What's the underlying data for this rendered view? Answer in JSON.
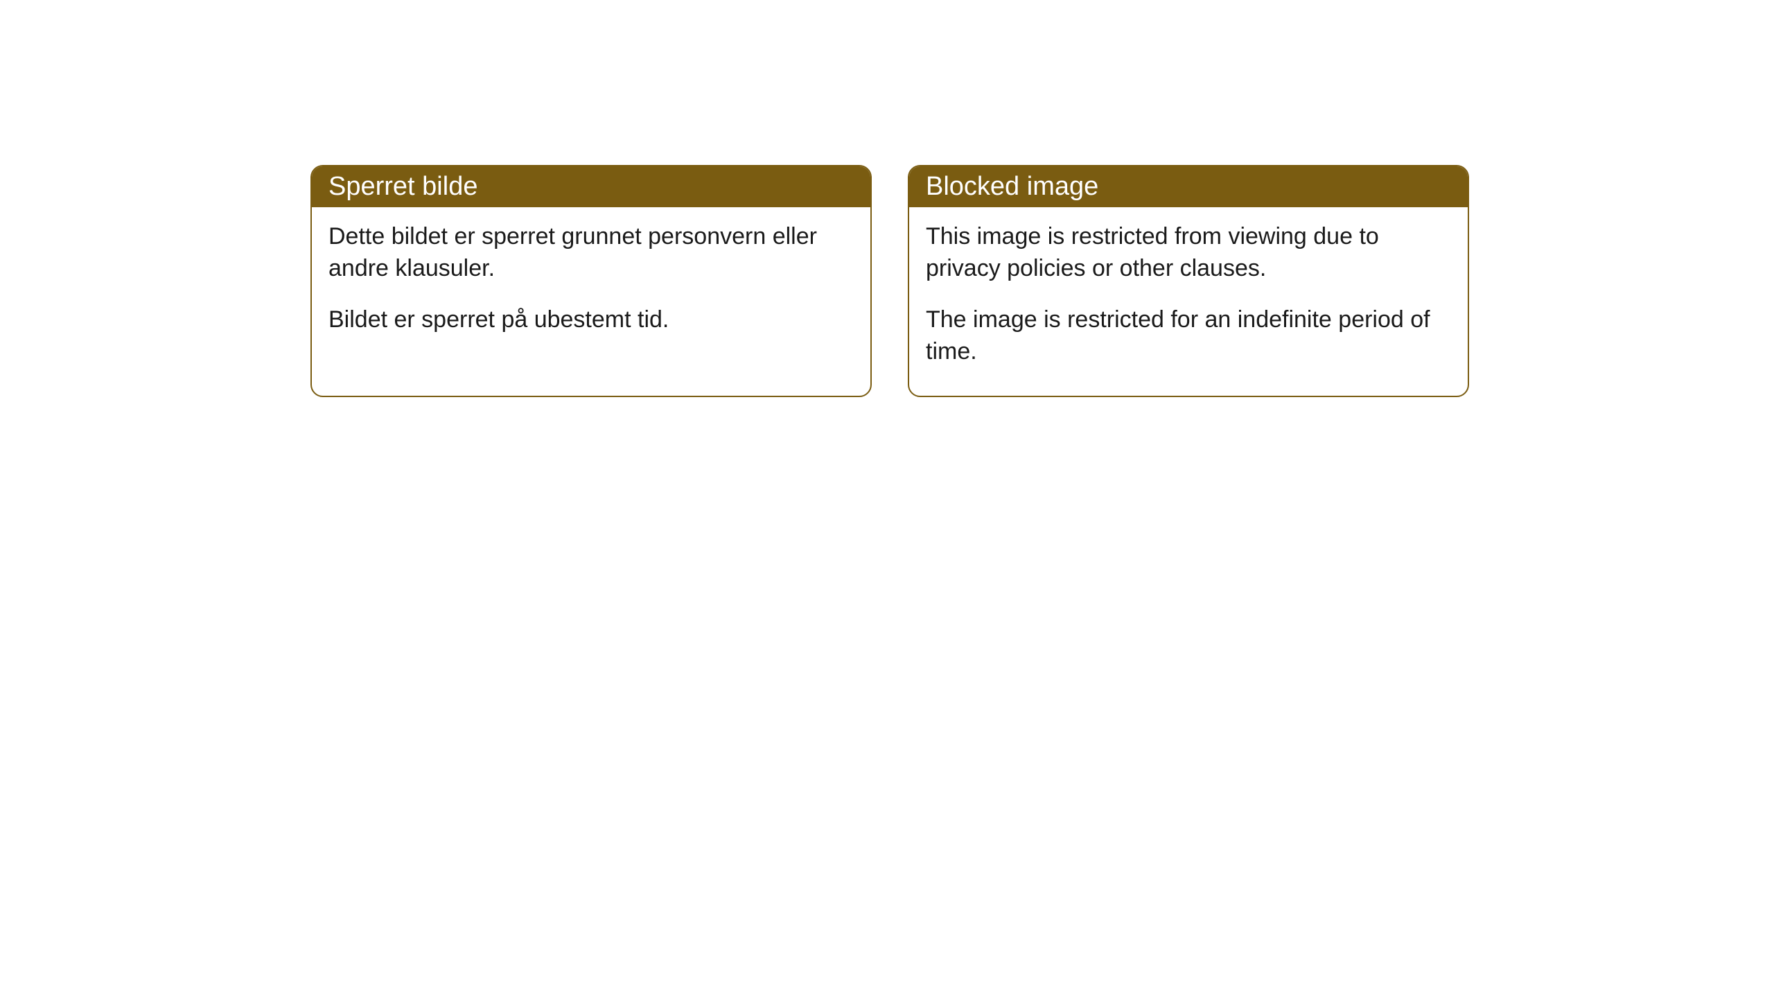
{
  "cards": [
    {
      "title": "Sperret bilde",
      "paragraph1": "Dette bildet er sperret grunnet personvern eller andre klausuler.",
      "paragraph2": "Bildet er sperret på ubestemt tid."
    },
    {
      "title": "Blocked image",
      "paragraph1": "This image is restricted from viewing due to privacy policies or other clauses.",
      "paragraph2": "The image is restricted for an indefinite period of time."
    }
  ],
  "style": {
    "header_bg": "#7a5c11",
    "header_color": "#ffffff",
    "border_color": "#7a5c11",
    "body_color": "#1a1a1a",
    "background_color": "#ffffff",
    "border_radius": 18,
    "title_fontsize": 38,
    "body_fontsize": 34
  }
}
